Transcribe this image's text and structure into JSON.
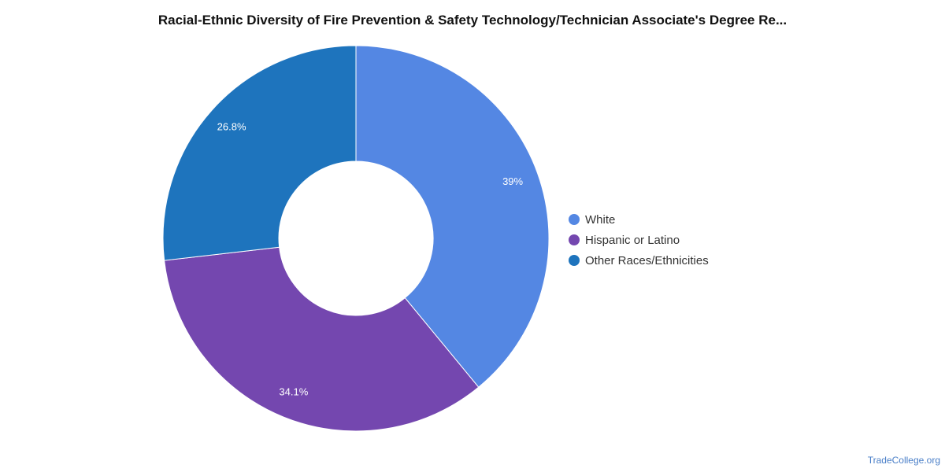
{
  "chart_data": {
    "type": "pie",
    "title": "Racial-Ethnic Diversity of Fire Prevention & Safety Technology/Technician Associate's Degree Re...",
    "donut": true,
    "legend_position": "right",
    "slices": [
      {
        "name": "White",
        "value": 39,
        "label": "39%",
        "color": "#5487e3"
      },
      {
        "name": "Hispanic or Latino",
        "value": 34.1,
        "label": "34.1%",
        "color": "#7447af"
      },
      {
        "name": "Other Races/Ethnicities",
        "value": 26.8,
        "label": "26.8%",
        "color": "#1e74bd"
      }
    ]
  },
  "attribution": "TradeCollege.org"
}
